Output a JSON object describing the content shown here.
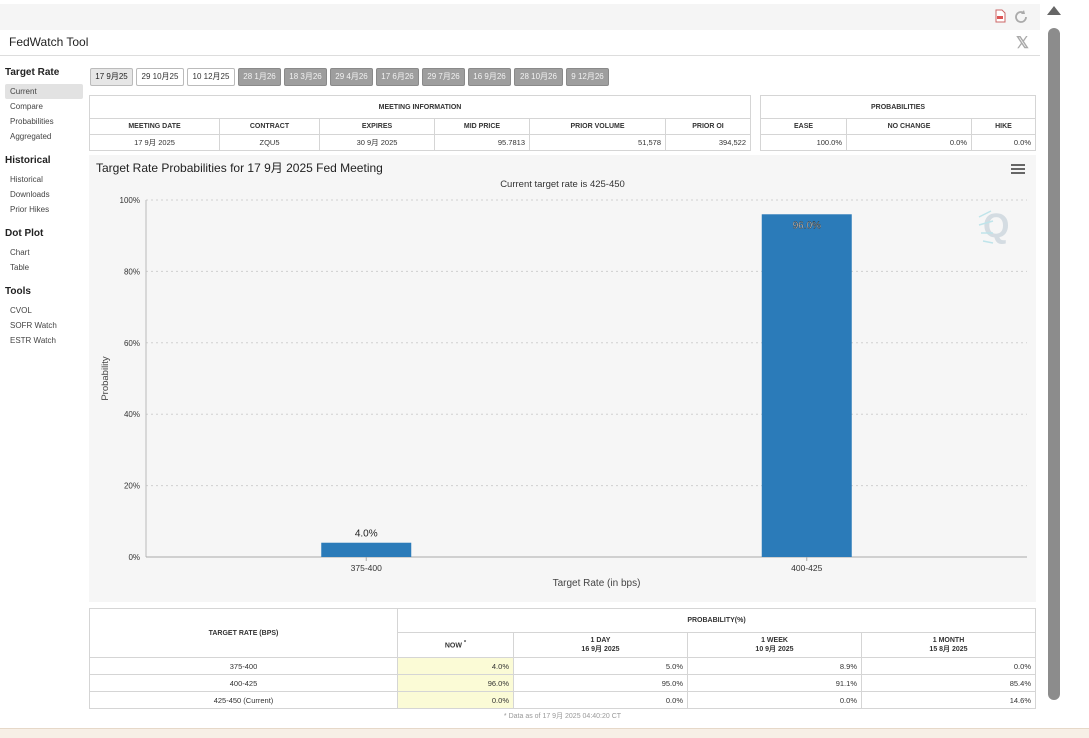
{
  "window": {
    "title": "FedWatch Tool",
    "close_icon": "x-logo-icon",
    "top_icons": [
      "pdf-icon",
      "refresh-icon"
    ]
  },
  "sidebar": {
    "sections": [
      {
        "title": "Target Rate",
        "items": [
          "Current",
          "Compare",
          "Probabilities",
          "Aggregated"
        ]
      },
      {
        "title": "Historical",
        "items": [
          "Historical",
          "Downloads",
          "Prior Hikes"
        ]
      },
      {
        "title": "Dot Plot",
        "items": [
          "Chart",
          "Table"
        ]
      },
      {
        "title": "Tools",
        "items": [
          "CVOL",
          "SOFR Watch",
          "ESTR Watch"
        ]
      }
    ],
    "active": "Current"
  },
  "meetings": [
    "17 9月25",
    "29 10月25",
    "10 12月25",
    "28 1月26",
    "18 3月26",
    "29 4月26",
    "17 6月26",
    "29 7月26",
    "16 9月26",
    "28 10月26",
    "9 12月26"
  ],
  "meeting_info": {
    "header": "MEETING INFORMATION",
    "columns": [
      "MEETING DATE",
      "CONTRACT",
      "EXPIRES",
      "MID PRICE",
      "PRIOR VOLUME",
      "PRIOR OI"
    ],
    "row": [
      "17 9月 2025",
      "ZQU5",
      "30 9月 2025",
      "95.7813",
      "51,578",
      "394,522"
    ]
  },
  "probabilities_summary": {
    "header": "PROBABILITIES",
    "columns": [
      "EASE",
      "NO CHANGE",
      "HIKE"
    ],
    "row": [
      "100.0%",
      "0.0%",
      "0.0%"
    ]
  },
  "chart": {
    "title": "Target Rate Probabilities for 17 9月 2025 Fed Meeting",
    "subtitle": "Current target rate is 425-450",
    "menu_icon": "hamburger-menu-icon",
    "watermark_icon": "q-logo-icon"
  },
  "chart_data": {
    "type": "bar",
    "title": "Target Rate Probabilities for 17 9月 2025 Fed Meeting",
    "subtitle": "Current target rate is 425-450",
    "categories": [
      "375-400",
      "400-425"
    ],
    "values": [
      4.0,
      96.0
    ],
    "data_labels": [
      "4.0%",
      "96.0%"
    ],
    "xlabel": "Target Rate (in bps)",
    "ylabel": "Probability",
    "ylim": [
      0,
      100
    ],
    "yticks": [
      "0%",
      "20%",
      "40%",
      "60%",
      "80%",
      "100%"
    ],
    "grid": true,
    "bar_color": "#2b7bb9"
  },
  "prob_table": {
    "col_header": "TARGET RATE (BPS)",
    "group_header": "PROBABILITY(%)",
    "columns": [
      {
        "label": "NOW",
        "sub": ""
      },
      {
        "label": "1 DAY",
        "sub": "16 9月 2025"
      },
      {
        "label": "1 WEEK",
        "sub": "10 9月 2025"
      },
      {
        "label": "1 MONTH",
        "sub": "15 8月 2025"
      }
    ],
    "now_marker": "*",
    "rows": [
      {
        "rate": "375-400",
        "values": [
          "4.0%",
          "5.0%",
          "8.9%",
          "0.0%"
        ]
      },
      {
        "rate": "400-425",
        "values": [
          "96.0%",
          "95.0%",
          "91.1%",
          "85.4%"
        ]
      },
      {
        "rate": "425-450 (Current)",
        "values": [
          "0.0%",
          "0.0%",
          "0.0%",
          "14.6%"
        ]
      }
    ],
    "footnote": "* Data as of 17 9月 2025 04:40:20 CT"
  }
}
